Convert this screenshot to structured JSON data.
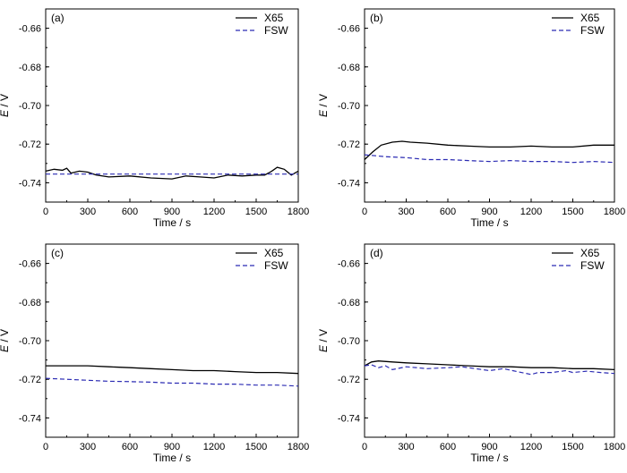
{
  "colors": {
    "x65": "#000000",
    "fsw": "#2b2bb3"
  },
  "chart_data": [
    {
      "type": "line",
      "panel_label": "(a)",
      "xlabel": "Time / s",
      "ylabel_var": "E",
      "ylabel_unit": " / V",
      "xlim": [
        0,
        1800
      ],
      "ylim": [
        -0.75,
        -0.65
      ],
      "xticks": [
        0,
        300,
        600,
        900,
        1200,
        1500,
        1800
      ],
      "xtick_labels": [
        "0",
        "300",
        "600",
        "900",
        "1200",
        "1500",
        "1800"
      ],
      "yticks": [
        -0.74,
        -0.72,
        -0.7,
        -0.68,
        -0.66
      ],
      "ytick_labels": [
        "-0.74",
        "-0.72",
        "-0.70",
        "-0.68",
        "-0.66"
      ],
      "series": [
        {
          "name": "X65",
          "x": [
            0,
            60,
            120,
            150,
            180,
            240,
            300,
            360,
            450,
            600,
            750,
            900,
            1000,
            1100,
            1200,
            1300,
            1400,
            1500,
            1560,
            1600,
            1620,
            1650,
            1700,
            1750,
            1800
          ],
          "y": [
            -0.734,
            -0.733,
            -0.7335,
            -0.7325,
            -0.735,
            -0.734,
            -0.7345,
            -0.736,
            -0.737,
            -0.7365,
            -0.7375,
            -0.738,
            -0.7365,
            -0.737,
            -0.7375,
            -0.736,
            -0.7365,
            -0.736,
            -0.736,
            -0.7345,
            -0.7335,
            -0.732,
            -0.733,
            -0.736,
            -0.734
          ]
        },
        {
          "name": "FSW",
          "x": [
            0,
            300,
            600,
            900,
            1200,
            1500,
            1800
          ],
          "y": [
            -0.7355,
            -0.7355,
            -0.7355,
            -0.7355,
            -0.7355,
            -0.7355,
            -0.7355
          ]
        }
      ]
    },
    {
      "type": "line",
      "panel_label": "(b)",
      "xlabel": "Time / s",
      "ylabel_var": "E",
      "ylabel_unit": " / V",
      "xlim": [
        0,
        1800
      ],
      "ylim": [
        -0.75,
        -0.65
      ],
      "xticks": [
        0,
        300,
        600,
        900,
        1200,
        1500,
        1800
      ],
      "xtick_labels": [
        "0",
        "300",
        "600",
        "900",
        "1200",
        "1500",
        "1800"
      ],
      "yticks": [
        -0.74,
        -0.72,
        -0.7,
        -0.68,
        -0.66
      ],
      "ytick_labels": [
        "-0.74",
        "-0.72",
        "-0.70",
        "-0.68",
        "-0.66"
      ],
      "series": [
        {
          "name": "X65",
          "x": [
            0,
            60,
            120,
            200,
            270,
            330,
            450,
            600,
            750,
            900,
            1050,
            1200,
            1350,
            1500,
            1650,
            1750,
            1800
          ],
          "y": [
            -0.728,
            -0.724,
            -0.7205,
            -0.719,
            -0.7185,
            -0.719,
            -0.7195,
            -0.7205,
            -0.721,
            -0.7215,
            -0.7215,
            -0.721,
            -0.7215,
            -0.7215,
            -0.7205,
            -0.7205,
            -0.7205
          ]
        },
        {
          "name": "FSW",
          "x": [
            0,
            150,
            300,
            450,
            600,
            750,
            900,
            1050,
            1200,
            1350,
            1500,
            1650,
            1800
          ],
          "y": [
            -0.7255,
            -0.7265,
            -0.727,
            -0.728,
            -0.728,
            -0.7285,
            -0.729,
            -0.7285,
            -0.729,
            -0.729,
            -0.7295,
            -0.729,
            -0.7295
          ]
        }
      ]
    },
    {
      "type": "line",
      "panel_label": "(c)",
      "xlabel": "Time / s",
      "ylabel_var": "E",
      "ylabel_unit": " / V",
      "xlim": [
        0,
        1800
      ],
      "ylim": [
        -0.75,
        -0.65
      ],
      "xticks": [
        0,
        300,
        600,
        900,
        1200,
        1500,
        1800
      ],
      "xtick_labels": [
        "0",
        "300",
        "600",
        "900",
        "1200",
        "1500",
        "1800"
      ],
      "yticks": [
        -0.74,
        -0.72,
        -0.7,
        -0.68,
        -0.66
      ],
      "ytick_labels": [
        "-0.74",
        "-0.72",
        "-0.70",
        "-0.68",
        "-0.66"
      ],
      "series": [
        {
          "name": "X65",
          "x": [
            0,
            150,
            300,
            450,
            600,
            750,
            900,
            1050,
            1200,
            1350,
            1500,
            1650,
            1800
          ],
          "y": [
            -0.713,
            -0.713,
            -0.713,
            -0.7135,
            -0.714,
            -0.7145,
            -0.715,
            -0.7155,
            -0.7155,
            -0.716,
            -0.7165,
            -0.7165,
            -0.717
          ]
        },
        {
          "name": "FSW",
          "x": [
            0,
            150,
            300,
            450,
            600,
            750,
            900,
            1050,
            1200,
            1350,
            1500,
            1650,
            1800
          ],
          "y": [
            -0.7195,
            -0.72,
            -0.7205,
            -0.721,
            -0.7212,
            -0.7215,
            -0.722,
            -0.722,
            -0.7225,
            -0.7225,
            -0.723,
            -0.723,
            -0.7235
          ]
        }
      ]
    },
    {
      "type": "line",
      "panel_label": "(d)",
      "xlabel": "Time / s",
      "ylabel_var": "E",
      "ylabel_unit": " / V",
      "xlim": [
        0,
        1800
      ],
      "ylim": [
        -0.75,
        -0.65
      ],
      "xticks": [
        0,
        300,
        600,
        900,
        1200,
        1500,
        1800
      ],
      "xtick_labels": [
        "0",
        "300",
        "600",
        "900",
        "1200",
        "1500",
        "1800"
      ],
      "yticks": [
        -0.74,
        -0.72,
        -0.7,
        -0.68,
        -0.66
      ],
      "ytick_labels": [
        "-0.74",
        "-0.72",
        "-0.70",
        "-0.68",
        "-0.66"
      ],
      "series": [
        {
          "name": "X65",
          "x": [
            0,
            50,
            100,
            200,
            300,
            450,
            600,
            750,
            900,
            1050,
            1200,
            1350,
            1500,
            1650,
            1800
          ],
          "y": [
            -0.713,
            -0.711,
            -0.7105,
            -0.711,
            -0.7115,
            -0.712,
            -0.7125,
            -0.713,
            -0.7135,
            -0.7135,
            -0.714,
            -0.714,
            -0.7145,
            -0.7145,
            -0.715
          ]
        },
        {
          "name": "FSW",
          "x": [
            0,
            50,
            100,
            150,
            200,
            300,
            450,
            600,
            700,
            800,
            900,
            1000,
            1100,
            1200,
            1250,
            1350,
            1450,
            1500,
            1600,
            1700,
            1800
          ],
          "y": [
            -0.713,
            -0.7125,
            -0.714,
            -0.713,
            -0.715,
            -0.7135,
            -0.7145,
            -0.714,
            -0.7135,
            -0.7145,
            -0.7155,
            -0.7145,
            -0.716,
            -0.7175,
            -0.7165,
            -0.7165,
            -0.7155,
            -0.7165,
            -0.7158,
            -0.7165,
            -0.717
          ]
        }
      ]
    }
  ]
}
